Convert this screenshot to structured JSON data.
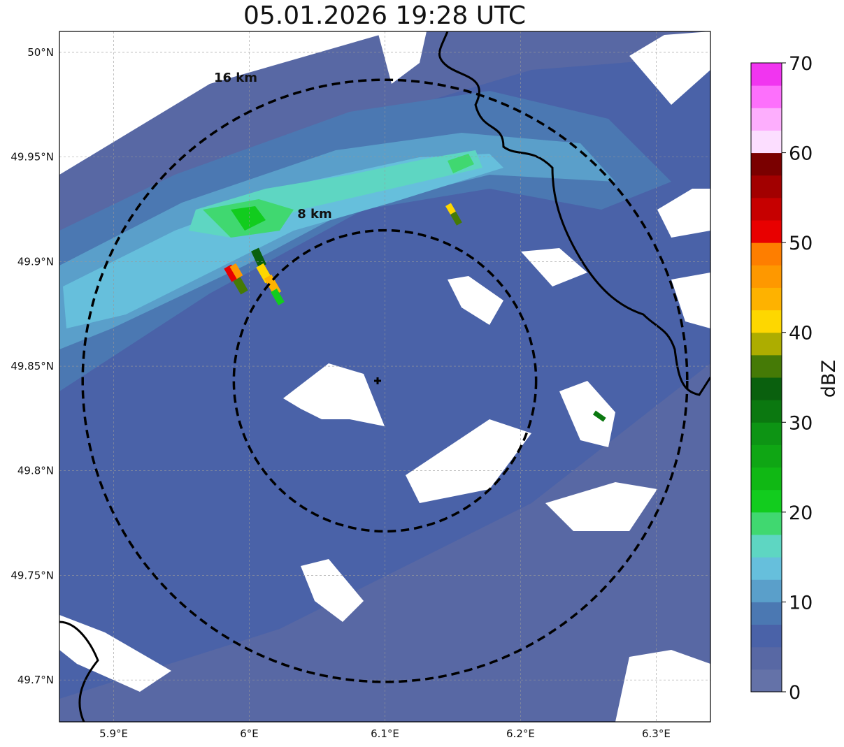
{
  "title": "05.01.2026 19:28 UTC",
  "map": {
    "lat_ticks": [
      {
        "value": 50.0,
        "label": "50°N"
      },
      {
        "value": 49.95,
        "label": "49.95°N"
      },
      {
        "value": 49.9,
        "label": "49.9°N"
      },
      {
        "value": 49.85,
        "label": "49.85°N"
      },
      {
        "value": 49.8,
        "label": "49.8°N"
      },
      {
        "value": 49.75,
        "label": "49.75°N"
      },
      {
        "value": 49.7,
        "label": "49.7°N"
      }
    ],
    "lon_ticks": [
      {
        "value": 5.9,
        "label": "5.9°E"
      },
      {
        "value": 6.0,
        "label": "6°E"
      },
      {
        "value": 6.1,
        "label": "6.1°E"
      },
      {
        "value": 6.2,
        "label": "6.2°E"
      },
      {
        "value": 6.3,
        "label": "6.3°E"
      }
    ],
    "extent": {
      "lon_min": 5.86,
      "lon_max": 6.34,
      "lat_min": 49.68,
      "lat_max": 50.01
    },
    "radar_site": {
      "lon": 6.1,
      "lat": 49.843
    },
    "range_rings": [
      {
        "radius_km": 8,
        "label": "8 km"
      },
      {
        "radius_km": 16,
        "label": "16 km"
      }
    ],
    "gridlines": true
  },
  "colorbar": {
    "unit": "dBZ",
    "ticks": [
      "0",
      "10",
      "20",
      "30",
      "40",
      "50",
      "60",
      "70"
    ],
    "colors": [
      "#6472a8",
      "#5868a4",
      "#4a62a8",
      "#4b78b2",
      "#5a9fca",
      "#66bfdc",
      "#5ed6c2",
      "#40d870",
      "#12cc1e",
      "#10b814",
      "#0fa614",
      "#0d9414",
      "#0b7810",
      "#0a600e",
      "#457a06",
      "#adad00",
      "#fed700",
      "#feb200",
      "#fe9800",
      "#fe7e00",
      "#e80000",
      "#c60000",
      "#a20000",
      "#7a0000",
      "#fcdeff",
      "#fdaefd",
      "#fd70fc",
      "#f135f0"
    ]
  }
}
